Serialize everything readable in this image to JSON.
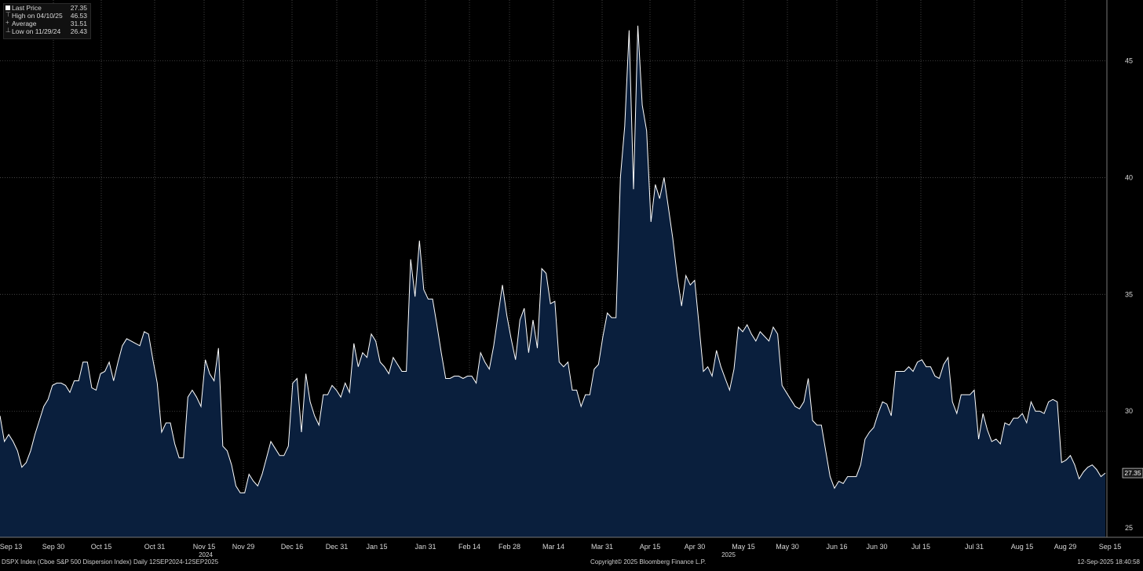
{
  "chart_data": {
    "type": "area",
    "series_name": "DSPX Index",
    "colors": {
      "background": "#000000",
      "fill": "#0a1f3d",
      "line": "#ffffff",
      "grid": "#5a5a5a",
      "text": "#d8d8d8"
    },
    "y_axis": {
      "ylim": [
        24.6,
        47.6
      ],
      "ticks": [
        25,
        30,
        35,
        40,
        45
      ],
      "position": "right"
    },
    "x_axis": {
      "tick_labels": [
        "Sep 13",
        "Sep 30",
        "Oct 15",
        "Oct 31",
        "Nov 15",
        "Nov 29",
        "Dec 16",
        "Dec 31",
        "Jan 15",
        "Jan 31",
        "Feb 14",
        "Feb 28",
        "Mar 14",
        "Mar 31",
        "Apr 15",
        "Apr 30",
        "May 15",
        "May 30",
        "Jun 16",
        "Jun 30",
        "Jul 15",
        "Jul 31",
        "Aug 15",
        "Aug 29",
        "Sep 15"
      ],
      "year_labels": [
        "2024",
        "2025"
      ]
    },
    "grid": true,
    "last_value_label": "27.35",
    "values": [
      29.8,
      28.7,
      29.0,
      28.7,
      28.3,
      27.6,
      27.8,
      28.3,
      29.0,
      29.6,
      30.2,
      30.5,
      31.1,
      31.2,
      31.2,
      31.1,
      30.8,
      31.3,
      31.3,
      32.1,
      32.1,
      31.0,
      30.9,
      31.6,
      31.7,
      32.1,
      31.3,
      32.1,
      32.8,
      33.1,
      33.0,
      32.9,
      32.8,
      33.4,
      33.3,
      32.2,
      31.2,
      29.1,
      29.5,
      29.5,
      28.6,
      28.0,
      28.0,
      30.6,
      30.9,
      30.6,
      30.2,
      32.2,
      31.6,
      31.3,
      32.7,
      28.5,
      28.3,
      27.7,
      26.8,
      26.5,
      26.5,
      27.3,
      27.0,
      26.8,
      27.3,
      28.0,
      28.7,
      28.4,
      28.1,
      28.1,
      28.5,
      31.2,
      31.4,
      29.1,
      31.6,
      30.4,
      29.8,
      29.4,
      30.7,
      30.7,
      31.1,
      30.9,
      30.6,
      31.2,
      30.8,
      32.9,
      31.9,
      32.5,
      32.3,
      33.3,
      33.0,
      32.1,
      31.9,
      31.6,
      32.3,
      32.0,
      31.7,
      31.7,
      36.5,
      34.9,
      37.3,
      35.2,
      34.8,
      34.8,
      33.7,
      32.5,
      31.4,
      31.4,
      31.5,
      31.5,
      31.4,
      31.5,
      31.5,
      31.2,
      32.5,
      32.1,
      31.8,
      32.8,
      34.1,
      35.4,
      34.1,
      33.1,
      32.2,
      33.9,
      34.4,
      32.5,
      33.9,
      32.7,
      36.1,
      35.9,
      34.6,
      34.7,
      32.1,
      31.9,
      32.1,
      30.9,
      30.9,
      30.2,
      30.7,
      30.7,
      31.8,
      32.0,
      33.2,
      34.2,
      34.0,
      34.0,
      40.0,
      42.2,
      46.3,
      39.5,
      46.5,
      43.1,
      42.0,
      38.1,
      39.7,
      39.1,
      40.0,
      38.7,
      37.4,
      35.8,
      34.5,
      35.8,
      35.4,
      35.6,
      33.7,
      31.7,
      31.9,
      31.5,
      32.6,
      31.9,
      31.4,
      30.9,
      31.8,
      33.6,
      33.4,
      33.7,
      33.3,
      33.0,
      33.4,
      33.2,
      33.0,
      33.6,
      33.3,
      31.1,
      30.8,
      30.5,
      30.2,
      30.1,
      30.4,
      31.4,
      29.6,
      29.4,
      29.4,
      28.3,
      27.2,
      26.7,
      27.0,
      26.9,
      27.2,
      27.2,
      27.2,
      27.7,
      28.8,
      29.1,
      29.3,
      29.9,
      30.4,
      30.3,
      29.8,
      31.7,
      31.7,
      31.7,
      31.9,
      31.7,
      32.1,
      32.2,
      31.9,
      31.9,
      31.5,
      31.4,
      32.0,
      32.3,
      30.4,
      29.9,
      30.7,
      30.7,
      30.7,
      30.9,
      28.8,
      29.9,
      29.2,
      28.7,
      28.8,
      28.6,
      29.5,
      29.4,
      29.7,
      29.7,
      29.9,
      29.5,
      30.4,
      30.0,
      30.0,
      29.9,
      30.4,
      30.5,
      30.4,
      27.8,
      27.9,
      28.1,
      27.7,
      27.1,
      27.4,
      27.6,
      27.7,
      27.5,
      27.2,
      27.35
    ],
    "legend": [
      {
        "label": "Last Price",
        "value": "27.35",
        "glyph": "square"
      },
      {
        "label": "High on 04/10/25",
        "value": "46.53",
        "glyph": "high"
      },
      {
        "label": "Average",
        "value": "31.51",
        "glyph": "avg"
      },
      {
        "label": "Low on 11/29/24",
        "value": "26.43",
        "glyph": "low"
      }
    ]
  },
  "footer": {
    "left": "DSPX Index (Cboe S&P 500 Dispersion Index)  Daily 12SEP2024-12SEP2025",
    "center": "Copyright© 2025 Bloomberg Finance L.P.",
    "right": "12-Sep-2025 18:40:58"
  }
}
